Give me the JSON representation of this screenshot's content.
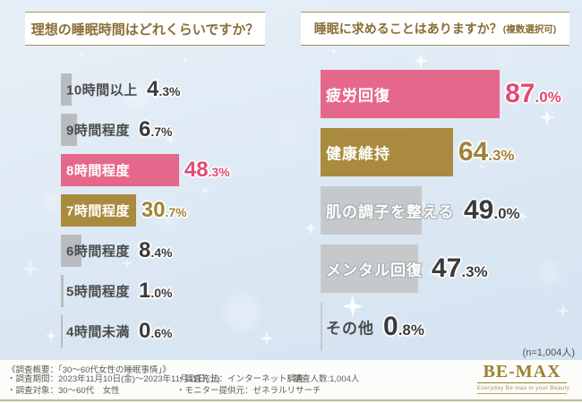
{
  "colors": {
    "pink": "#e5688c",
    "gold": "#aa8a3e",
    "gray_left": "#b9bcbe",
    "gray_right": "#c6c9cb",
    "pink_text": "#e04a73",
    "gold_text": "#a28336",
    "dark_text": "#3b3b3b",
    "title_text": "#8a6d35",
    "accent_line": "#c8b78c",
    "background": "#dde9f4"
  },
  "chart_data": [
    {
      "type": "bar",
      "orientation": "horizontal",
      "title": "理想の睡眠時間はどれくらいですか？",
      "unit": "%",
      "xlim": [
        0,
        100
      ],
      "items": [
        {
          "label": "10時間以上",
          "value": 4.3,
          "bar": "gray_left",
          "label_on_bar": false,
          "value_color": "dark_text"
        },
        {
          "label": "9時間程度",
          "value": 6.7,
          "bar": "gray_left",
          "label_on_bar": false,
          "value_color": "dark_text"
        },
        {
          "label": "8時間程度",
          "value": 48.3,
          "bar": "pink",
          "label_on_bar": true,
          "value_color": "pink_text"
        },
        {
          "label": "7時間程度",
          "value": 30.7,
          "bar": "gold",
          "label_on_bar": true,
          "value_color": "gold_text"
        },
        {
          "label": "6時間程度",
          "value": 8.4,
          "bar": "gray_left",
          "label_on_bar": false,
          "value_color": "dark_text"
        },
        {
          "label": "5時間程度",
          "value": 1.0,
          "bar": "gray_left",
          "label_on_bar": false,
          "value_color": "dark_text"
        },
        {
          "label": "4時間未満",
          "value": 0.6,
          "bar": "gray_left",
          "label_on_bar": false,
          "value_color": "dark_text"
        }
      ]
    },
    {
      "type": "bar",
      "orientation": "horizontal",
      "title": "睡眠に求めることはありますか？",
      "title_note": "(複数選択可)",
      "note": "(n=1,004人)",
      "unit": "%",
      "xlim": [
        0,
        100
      ],
      "items": [
        {
          "label": "疲労回復",
          "value": 87.0,
          "bar": "pink",
          "label_on_bar": true,
          "value_color": "pink_text"
        },
        {
          "label": "健康維持",
          "value": 64.3,
          "bar": "gold",
          "label_on_bar": true,
          "value_color": "gold_text"
        },
        {
          "label": "肌の調子を整える",
          "value": 49.0,
          "bar": "gray_right",
          "label_on_bar": true,
          "value_color": "dark_text"
        },
        {
          "label": "メンタル回復",
          "value": 47.3,
          "bar": "gray_right",
          "label_on_bar": true,
          "value_color": "dark_text"
        },
        {
          "label": "その他",
          "value": 0.8,
          "bar": "gray_right",
          "label_on_bar": false,
          "value_color": "dark_text"
        }
      ]
    }
  ],
  "footer": {
    "heading": "《調査概要：「30〜60代女性の睡眠事情」》",
    "items": [
      "・調査期間：2023年11月10日(金)～2023年11月11日(土)",
      "・調査対象：30～60代　女性",
      "・調査方法：インターネット調査",
      "・モニター提供元：ゼネラルリサーチ",
      "・調査人数:1,004人"
    ],
    "logo": {
      "name": "BE-MAX",
      "tagline": "Everyday Be max in your Beauty"
    }
  }
}
